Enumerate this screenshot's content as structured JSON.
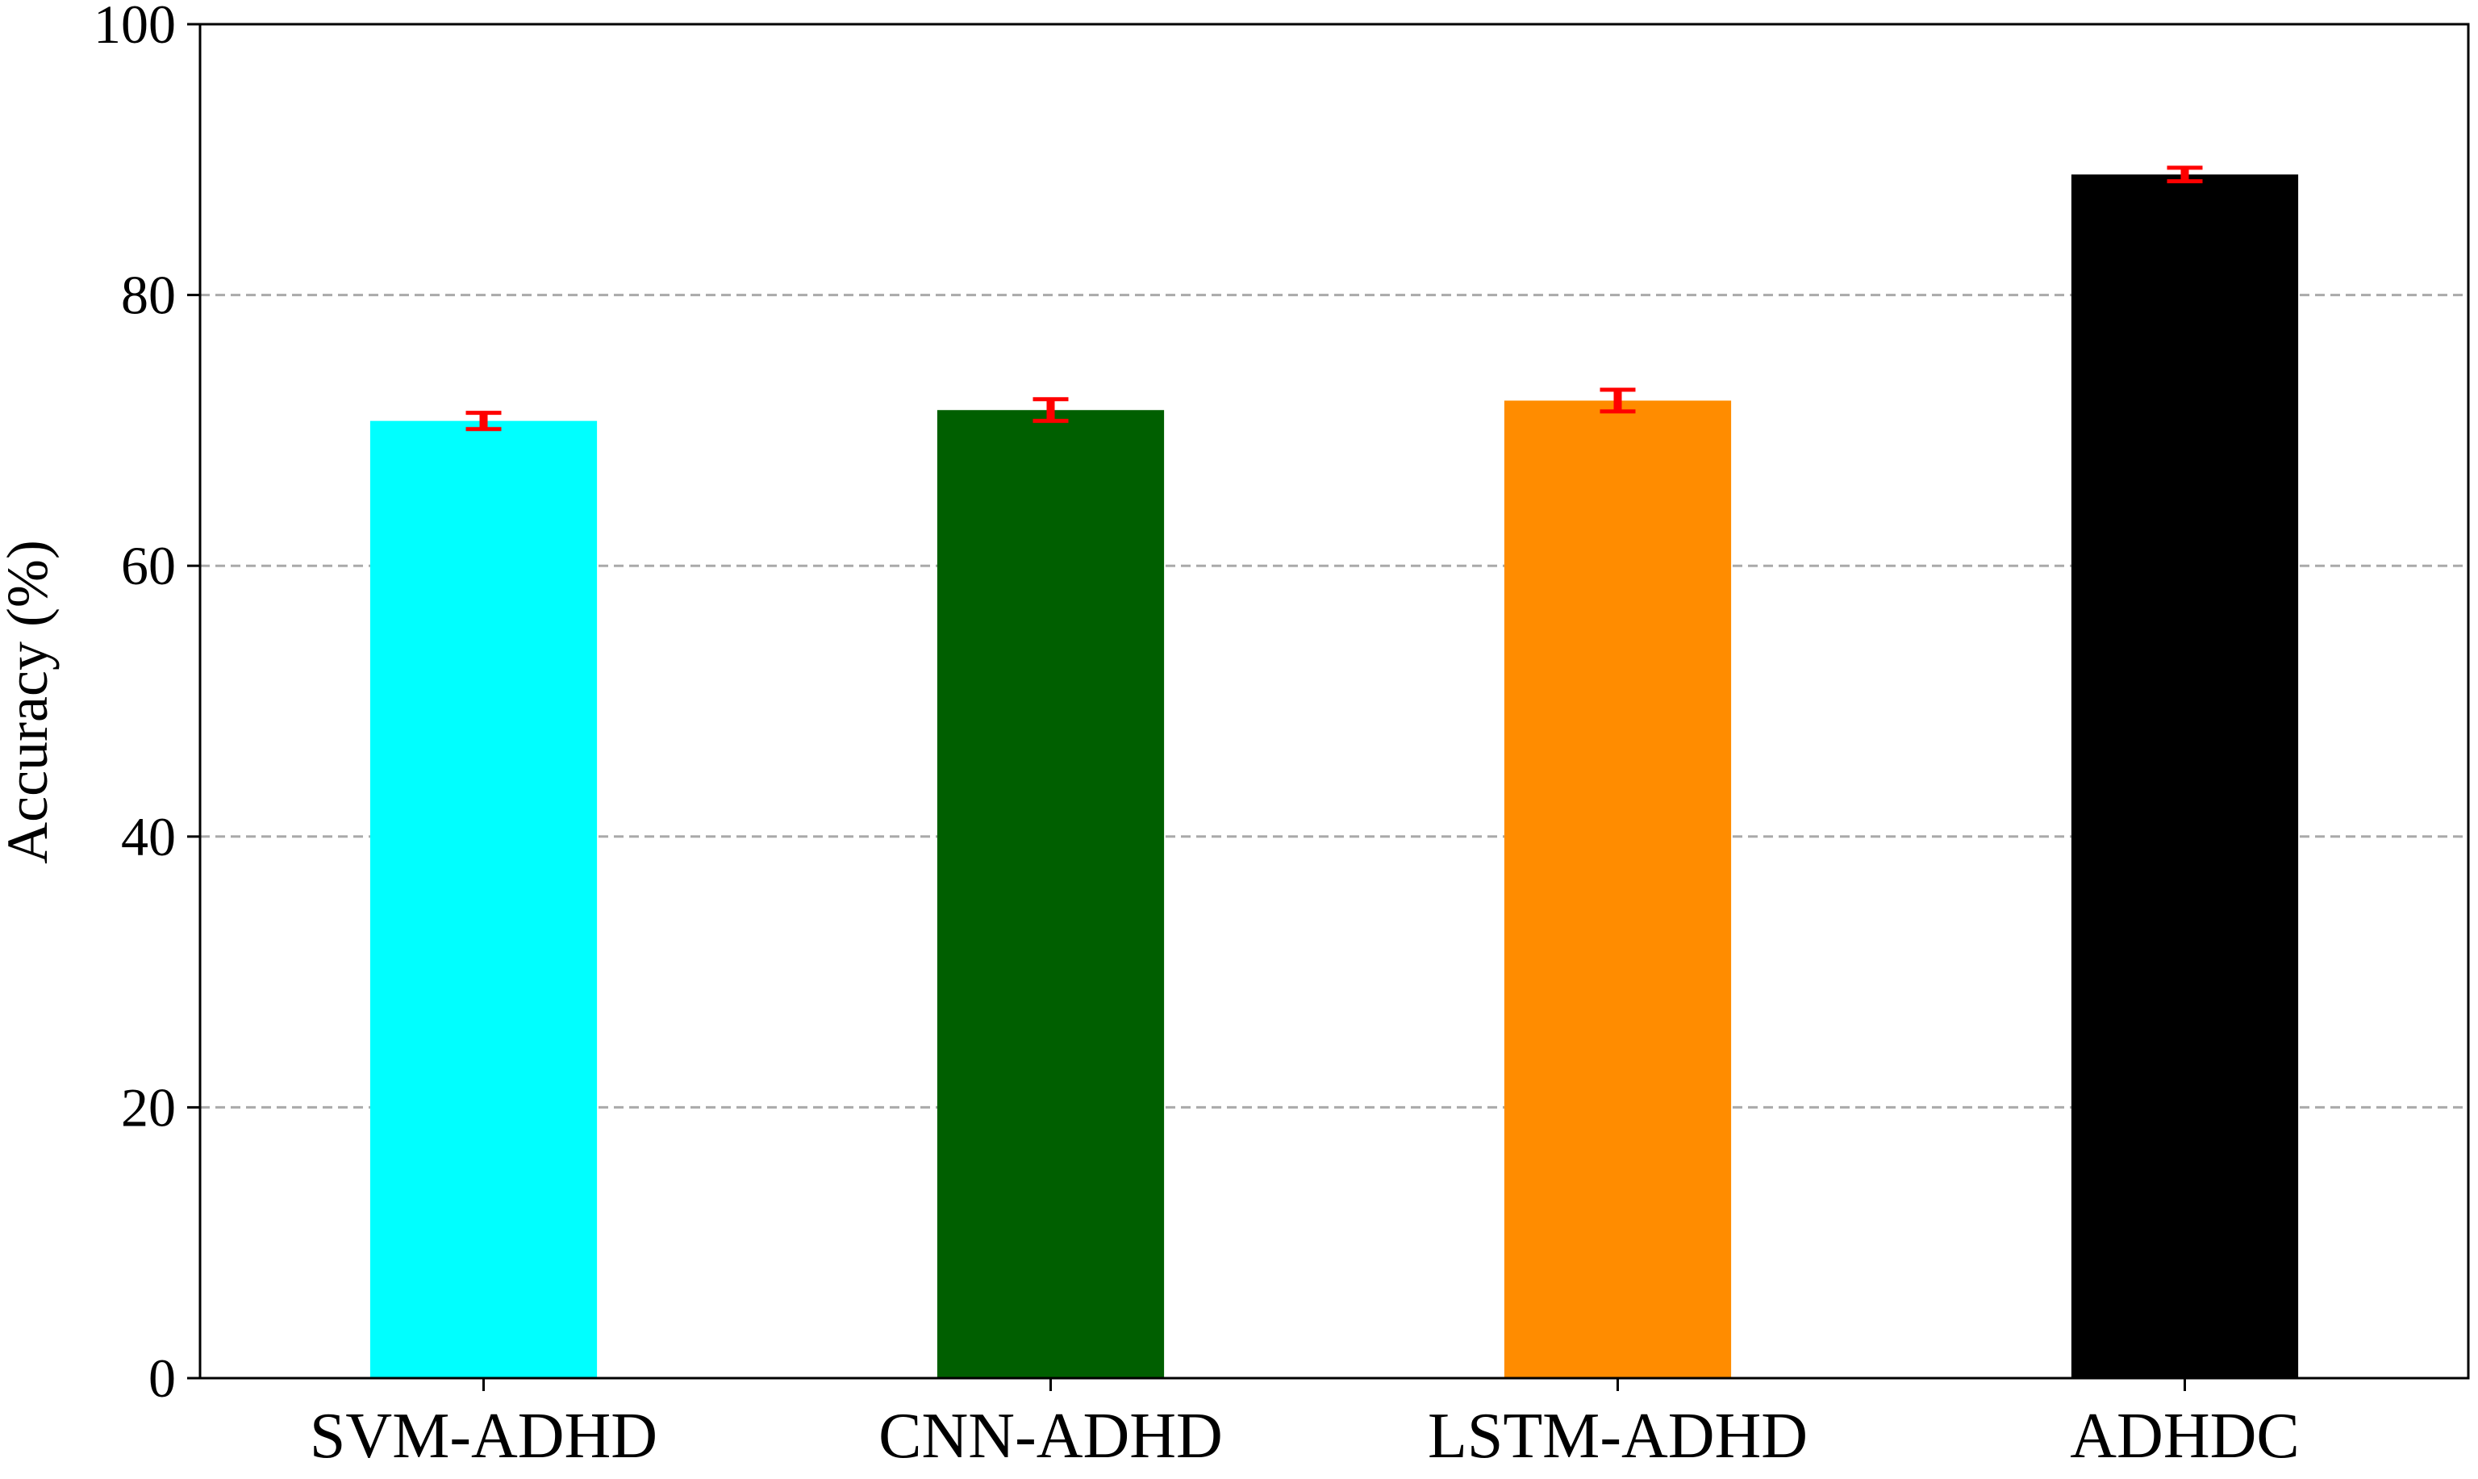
{
  "chart_data": {
    "type": "bar",
    "categories": [
      "SVM-ADHD",
      "CNN-ADHD",
      "LSTM-ADHD",
      "ADHDC"
    ],
    "values": [
      70.7,
      71.5,
      72.2,
      88.9
    ],
    "errors": [
      0.6,
      0.8,
      0.8,
      0.5
    ],
    "colors": [
      "#00ffff",
      "#005f00",
      "#ff8c00",
      "#000000"
    ],
    "error_color": "#ff0000",
    "xlabel": "",
    "ylabel": "Accuracy (%)",
    "ylim": [
      0,
      100
    ],
    "yticks": [
      0,
      20,
      40,
      60,
      80,
      100
    ],
    "grid": "y-dashed",
    "legend": "none"
  }
}
